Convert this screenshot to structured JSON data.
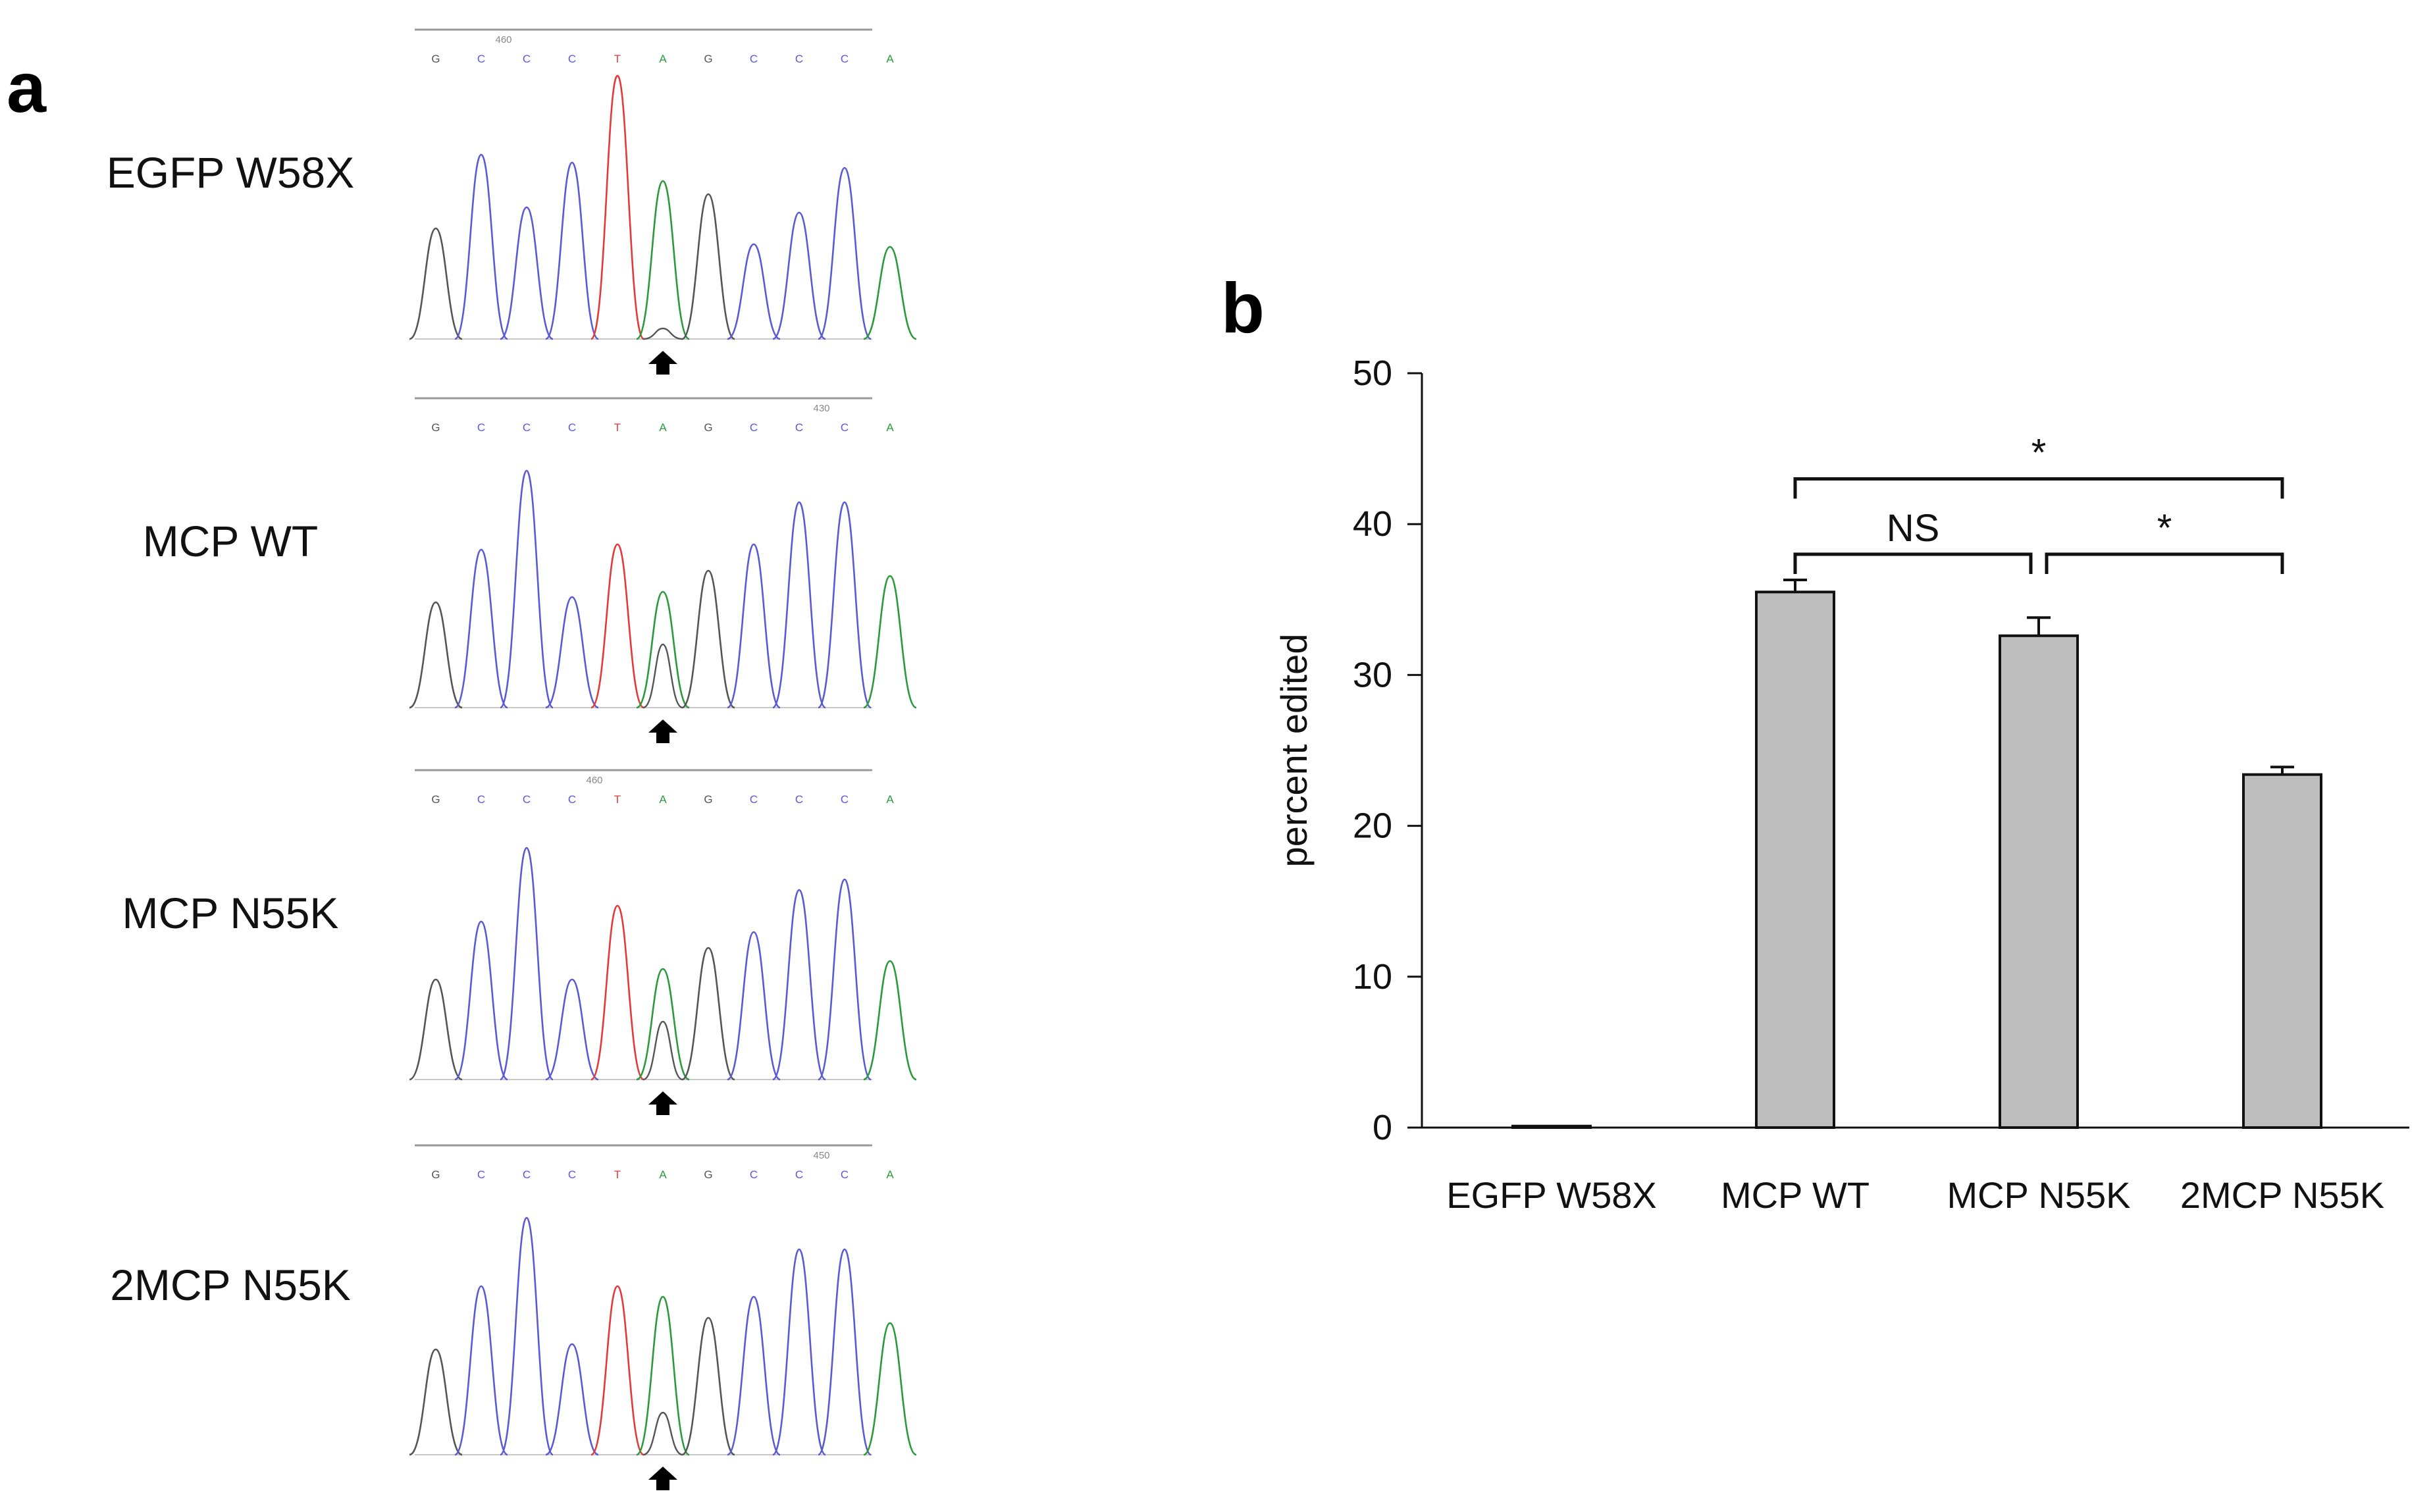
{
  "panels": {
    "a": "a",
    "b": "b"
  },
  "colors": {
    "A": "#2a9a3a",
    "C": "#5a5ad6",
    "G": "#555555",
    "T": "#e23a3a",
    "bar": "#bdbdbd"
  },
  "traces": [
    {
      "label": "EGFP W58X",
      "bases": [
        "G",
        "C",
        "C",
        "C",
        "T",
        "A",
        "G",
        "C",
        "C",
        "C",
        "A"
      ],
      "position": "460",
      "posAfter": 1,
      "peaks": [
        0.42,
        0.7,
        0.5,
        0.67,
        1.0,
        0.6,
        0.55,
        0.36,
        0.48,
        0.65,
        0.35
      ],
      "minorAt5": 0.04
    },
    {
      "label": "MCP WT",
      "bases": [
        "G",
        "C",
        "C",
        "C",
        "T",
        "A",
        "G",
        "C",
        "C",
        "C",
        "A"
      ],
      "position": "430",
      "posAfter": 8,
      "peaks": [
        0.4,
        0.6,
        0.9,
        0.42,
        0.62,
        0.44,
        0.52,
        0.62,
        0.78,
        0.78,
        0.5
      ],
      "minorAt5": 0.24
    },
    {
      "label": "MCP N55K",
      "bases": [
        "G",
        "C",
        "C",
        "C",
        "T",
        "A",
        "G",
        "C",
        "C",
        "C",
        "A"
      ],
      "position": "460",
      "posAfter": 3,
      "peaks": [
        0.38,
        0.6,
        0.88,
        0.38,
        0.66,
        0.42,
        0.5,
        0.56,
        0.72,
        0.76,
        0.45
      ],
      "minorAt5": 0.22
    },
    {
      "label": "2MCP N55K",
      "bases": [
        "G",
        "C",
        "C",
        "C",
        "T",
        "A",
        "G",
        "C",
        "C",
        "C",
        "A"
      ],
      "position": "450",
      "posAfter": 8,
      "peaks": [
        0.4,
        0.64,
        0.9,
        0.42,
        0.64,
        0.6,
        0.52,
        0.6,
        0.78,
        0.78,
        0.5
      ],
      "minorAt5": 0.16
    }
  ],
  "chart_data": {
    "type": "bar",
    "title": "",
    "xlabel": "",
    "ylabel": "percent edited",
    "ylim": [
      0,
      50
    ],
    "yticks": [
      0,
      10,
      20,
      30,
      40,
      50
    ],
    "grid": false,
    "categories": [
      "EGFP W58X",
      "MCP WT",
      "MCP N55K",
      "2MCP N55K"
    ],
    "values": [
      0.1,
      35.5,
      32.6,
      23.4
    ],
    "errors": [
      0.0,
      0.8,
      1.2,
      0.5
    ],
    "significance": [
      {
        "from": 1,
        "to": 3,
        "label": "*",
        "level": 43
      },
      {
        "from": 1,
        "to": 2,
        "label": "NS",
        "level": 38
      },
      {
        "from": 2,
        "to": 3,
        "label": "*",
        "level": 38
      }
    ]
  }
}
